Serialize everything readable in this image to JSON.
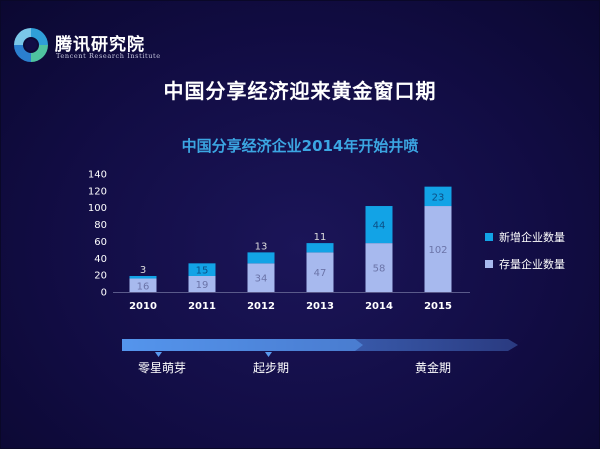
{
  "brand": {
    "name": "腾讯研究院",
    "sub": "Tencent Research Institute"
  },
  "page_title": "中国分享经济迎来黄金窗口期",
  "chart_data": {
    "type": "bar",
    "stacked": true,
    "title": "中国分享经济企业2014年开始井喷",
    "categories": [
      "2010",
      "2011",
      "2012",
      "2013",
      "2014",
      "2015"
    ],
    "series": [
      {
        "name": "存量企业数量",
        "values": [
          16,
          19,
          34,
          47,
          58,
          102
        ],
        "color": "#a7b9ee"
      },
      {
        "name": "新增企业数量",
        "values": [
          3,
          15,
          13,
          11,
          44,
          23
        ],
        "color": "#12a3e6"
      }
    ],
    "ylim": [
      0,
      140
    ],
    "yticks": [
      0,
      20,
      40,
      60,
      80,
      100,
      120,
      140
    ],
    "grid": false,
    "legend_position": "right"
  },
  "timeline": {
    "labels": [
      "零星萌芽",
      "起步期",
      "黄金期"
    ]
  }
}
